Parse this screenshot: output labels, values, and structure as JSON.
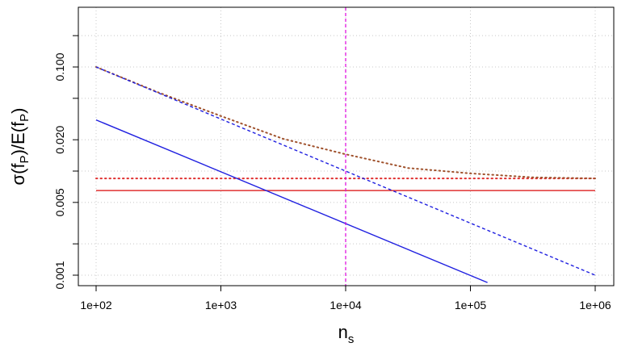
{
  "chart_data": {
    "type": "line",
    "xscale": "log",
    "yscale": "log",
    "xlim": [
      100,
      1000000
    ],
    "ylim": [
      0.00085,
      0.3
    ],
    "xlabel": {
      "main": "n",
      "sub": "s"
    },
    "ylabel": {
      "pre": "σ(f",
      "sub1": "P",
      "mid": ")/E(f",
      "sub2": "P",
      "post": ")"
    },
    "grid": true,
    "x_ticks": [
      {
        "value": 100,
        "label": "1e+02"
      },
      {
        "value": 1000,
        "label": "1e+03"
      },
      {
        "value": 10000,
        "label": "1e+04"
      },
      {
        "value": 100000,
        "label": "1e+05"
      },
      {
        "value": 1000000,
        "label": "1e+06"
      }
    ],
    "y_ticks": [
      {
        "value": 0.001,
        "label": "0.001"
      },
      {
        "value": 0.002,
        "label": ""
      },
      {
        "value": 0.005,
        "label": "0.005"
      },
      {
        "value": 0.01,
        "label": ""
      },
      {
        "value": 0.02,
        "label": "0.020"
      },
      {
        "value": 0.05,
        "label": ""
      },
      {
        "value": 0.1,
        "label": "0.100"
      },
      {
        "value": 0.2,
        "label": ""
      }
    ],
    "vline": {
      "x": 10000,
      "color": "#e000e0",
      "dash": "dashed"
    },
    "series": [
      {
        "color": "#e03030",
        "style": "solid",
        "x": [
          100,
          1000000
        ],
        "y": [
          0.0065,
          0.0065
        ]
      },
      {
        "color": "#e03030",
        "style": "dotted",
        "x": [
          100,
          1000000
        ],
        "y": [
          0.0085,
          0.0085
        ]
      },
      {
        "color": "#a0522d",
        "style": "dotted",
        "x": [
          100,
          316,
          1000,
          3162,
          10000,
          31623,
          100000,
          316228,
          1000000
        ],
        "y": [
          0.1,
          0.0569,
          0.0338,
          0.0204,
          0.0145,
          0.0107,
          0.0095,
          0.0087,
          0.0085
        ]
      },
      {
        "color": "#2020e0",
        "style": "dashed",
        "x": [
          100,
          1000000
        ],
        "y": [
          0.1,
          0.001
        ]
      },
      {
        "color": "#2020e0",
        "style": "solid",
        "x": [
          100,
          137000
        ],
        "y": [
          0.031,
          0.00085
        ]
      }
    ]
  }
}
